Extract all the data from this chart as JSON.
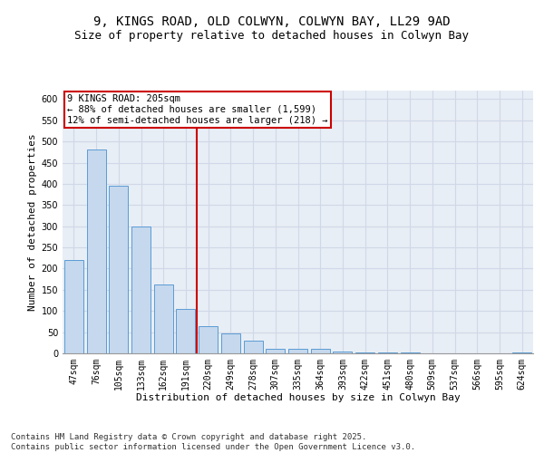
{
  "title_line1": "9, KINGS ROAD, OLD COLWYN, COLWYN BAY, LL29 9AD",
  "title_line2": "Size of property relative to detached houses in Colwyn Bay",
  "xlabel": "Distribution of detached houses by size in Colwyn Bay",
  "ylabel": "Number of detached properties",
  "categories": [
    "47sqm",
    "76sqm",
    "105sqm",
    "133sqm",
    "162sqm",
    "191sqm",
    "220sqm",
    "249sqm",
    "278sqm",
    "307sqm",
    "335sqm",
    "364sqm",
    "393sqm",
    "422sqm",
    "451sqm",
    "480sqm",
    "509sqm",
    "537sqm",
    "566sqm",
    "595sqm",
    "624sqm"
  ],
  "values": [
    220,
    480,
    395,
    300,
    163,
    105,
    65,
    46,
    30,
    10,
    10,
    10,
    5,
    3,
    2,
    2,
    1,
    1,
    1,
    1,
    3
  ],
  "bar_color": "#c5d8ed",
  "bar_edge_color": "#5b9bd5",
  "grid_color": "#d0d8e8",
  "background_color": "#e8eef5",
  "annotation_line1": "9 KINGS ROAD: 205sqm",
  "annotation_line2": "← 88% of detached houses are smaller (1,599)",
  "annotation_line3": "12% of semi-detached houses are larger (218) →",
  "annotation_box_color": "#ffffff",
  "annotation_border_color": "#cc0000",
  "vline_x_index": 5.5,
  "vline_color": "#cc0000",
  "ylim": [
    0,
    620
  ],
  "yticks": [
    0,
    50,
    100,
    150,
    200,
    250,
    300,
    350,
    400,
    450,
    500,
    550,
    600
  ],
  "footer_text": "Contains HM Land Registry data © Crown copyright and database right 2025.\nContains public sector information licensed under the Open Government Licence v3.0.",
  "title_fontsize": 10,
  "subtitle_fontsize": 9,
  "axis_label_fontsize": 8,
  "tick_fontsize": 7,
  "annotation_fontsize": 7.5,
  "footer_fontsize": 6.5
}
